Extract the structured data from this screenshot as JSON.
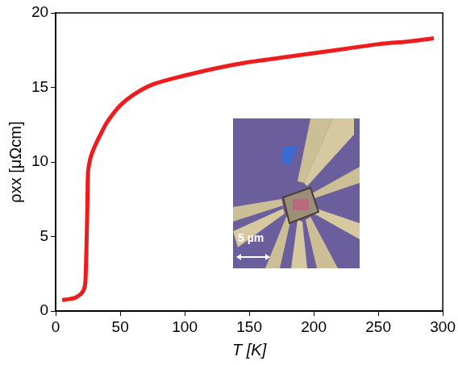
{
  "chart_data": {
    "type": "line",
    "x_label": "T [K]",
    "y_label": "ρxx [μΩcm]",
    "x": [
      5,
      10,
      15,
      18,
      20,
      22,
      23,
      24,
      24.5,
      25,
      26,
      27,
      30,
      35,
      40,
      50,
      60,
      75,
      100,
      125,
      150,
      175,
      200,
      225,
      250,
      275,
      293
    ],
    "values": [
      0.75,
      0.8,
      0.9,
      1.05,
      1.2,
      1.5,
      2.0,
      5.0,
      7.0,
      9.3,
      9.9,
      10.3,
      11.0,
      11.9,
      12.7,
      13.8,
      14.5,
      15.2,
      15.8,
      16.3,
      16.7,
      17.0,
      17.3,
      17.6,
      17.9,
      18.1,
      18.3
    ],
    "color": "#ee1c1c",
    "xlim": [
      0,
      300
    ],
    "xticks": [
      0,
      50,
      100,
      150,
      200,
      250,
      300
    ],
    "ylim": [
      0,
      20
    ],
    "yticks": [
      0,
      5,
      10,
      15,
      20
    ],
    "grid": false,
    "annotations": [
      {
        "text": "5 µm"
      }
    ]
  }
}
